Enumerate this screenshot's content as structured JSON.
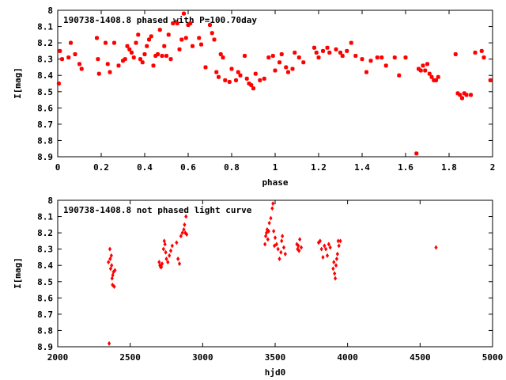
{
  "chart_data": [
    {
      "type": "scatter",
      "title": "190738-1408.8 phased with P=100.70day",
      "xlabel": "phase",
      "ylabel": "I[mag]",
      "xlim": [
        0,
        2
      ],
      "ylim": [
        8.9,
        8
      ],
      "y_inverted": true,
      "grid": false,
      "marker_color": "#ff0000",
      "marker": "star",
      "xticks": [
        "0",
        "0.2",
        "0.4",
        "0.6",
        "0.8",
        "1",
        "1.2",
        "1.4",
        "1.6",
        "1.8",
        "2"
      ],
      "yticks": [
        "8",
        "8.1",
        "8.2",
        "8.3",
        "8.4",
        "8.5",
        "8.6",
        "8.7",
        "8.8",
        "8.9"
      ],
      "x": [
        0.005,
        0.01,
        0.02,
        0.05,
        0.06,
        0.08,
        0.1,
        0.11,
        0.18,
        0.185,
        0.19,
        0.22,
        0.23,
        0.24,
        0.26,
        0.28,
        0.3,
        0.31,
        0.32,
        0.33,
        0.34,
        0.35,
        0.36,
        0.37,
        0.38,
        0.39,
        0.4,
        0.41,
        0.42,
        0.43,
        0.44,
        0.45,
        0.46,
        0.47,
        0.48,
        0.49,
        0.5,
        0.51,
        0.52,
        0.53,
        0.55,
        0.56,
        0.57,
        0.58,
        0.59,
        0.6,
        0.61,
        0.62,
        0.65,
        0.66,
        0.68,
        0.7,
        0.71,
        0.72,
        0.73,
        0.74,
        0.75,
        0.76,
        0.77,
        0.79,
        0.8,
        0.82,
        0.83,
        0.84,
        0.86,
        0.87,
        0.88,
        0.89,
        0.9,
        0.91,
        0.93,
        0.95,
        0.97,
        0.99,
        1.0,
        1.02,
        1.03,
        1.05,
        1.06,
        1.08,
        1.09,
        1.11,
        1.13,
        1.18,
        1.19,
        1.2,
        1.22,
        1.24,
        1.25,
        1.28,
        1.3,
        1.31,
        1.33,
        1.35,
        1.37,
        1.4,
        1.42,
        1.44,
        1.47,
        1.49,
        1.51,
        1.55,
        1.57,
        1.6,
        1.65,
        1.66,
        1.67,
        1.68,
        1.69,
        1.7,
        1.71,
        1.72,
        1.73,
        1.74,
        1.75,
        1.83,
        1.84,
        1.85,
        1.86,
        1.87,
        1.88,
        1.9,
        1.92,
        1.95,
        1.96,
        1.99
      ],
      "y": [
        8.45,
        8.25,
        8.3,
        8.29,
        8.2,
        8.27,
        8.33,
        8.36,
        8.17,
        8.3,
        8.39,
        8.2,
        8.33,
        8.38,
        8.2,
        8.34,
        8.31,
        8.3,
        8.22,
        8.24,
        8.26,
        8.29,
        8.2,
        8.15,
        8.3,
        8.32,
        8.27,
        8.22,
        8.18,
        8.16,
        8.34,
        8.28,
        8.27,
        8.12,
        8.28,
        8.22,
        8.28,
        8.15,
        8.3,
        8.08,
        8.08,
        8.24,
        8.18,
        8.02,
        8.17,
        8.09,
        8.08,
        8.22,
        8.17,
        8.21,
        8.35,
        8.09,
        8.14,
        8.18,
        8.38,
        8.41,
        8.27,
        8.29,
        8.43,
        8.44,
        8.36,
        8.43,
        8.38,
        8.4,
        8.28,
        8.42,
        8.45,
        8.46,
        8.48,
        8.39,
        8.43,
        8.42,
        8.29,
        8.28,
        8.37,
        8.32,
        8.27,
        8.35,
        8.38,
        8.36,
        8.26,
        8.29,
        8.32,
        8.23,
        8.26,
        8.29,
        8.25,
        8.23,
        8.26,
        8.24,
        8.26,
        8.28,
        8.25,
        8.2,
        8.28,
        8.3,
        8.38,
        8.31,
        8.29,
        8.29,
        8.34,
        8.29,
        8.4,
        8.29,
        8.88,
        8.36,
        8.37,
        8.34,
        8.37,
        8.33,
        8.39,
        8.41,
        8.43,
        8.43,
        8.41,
        8.27,
        8.51,
        8.52,
        8.54,
        8.51,
        8.52,
        8.52,
        8.26,
        8.25,
        8.29,
        8.43
      ],
      "point_size": 5,
      "clip_x": [
        0,
        2
      ]
    },
    {
      "type": "scatter",
      "title": "190738-1408.8 not phased light curve",
      "xlabel": "hjd0",
      "ylabel": "I[mag]",
      "xlim": [
        2000,
        5000
      ],
      "ylim": [
        8.9,
        8
      ],
      "y_inverted": true,
      "grid": false,
      "marker_color": "#ff0000",
      "marker": "diamond",
      "xticks": [
        "2000",
        "2500",
        "3000",
        "3500",
        "4000",
        "4500",
        "5000"
      ],
      "yticks": [
        "8",
        "8.1",
        "8.2",
        "8.3",
        "8.4",
        "8.5",
        "8.6",
        "8.7",
        "8.8",
        "8.9"
      ],
      "x": [
        2350,
        2355,
        2360,
        2362,
        2365,
        2370,
        2372,
        2375,
        2378,
        2380,
        2385,
        2390,
        2395,
        2700,
        2705,
        2710,
        2715,
        2720,
        2730,
        2735,
        2740,
        2745,
        2750,
        2760,
        2770,
        2780,
        2790,
        2820,
        2830,
        2840,
        2850,
        2860,
        2870,
        2875,
        2880,
        2885,
        2890,
        3430,
        3435,
        3440,
        3445,
        3450,
        3455,
        3460,
        3470,
        3480,
        3485,
        3490,
        3495,
        3500,
        3510,
        3520,
        3530,
        3540,
        3545,
        3550,
        3560,
        3570,
        3650,
        3655,
        3660,
        3665,
        3670,
        3680,
        3800,
        3810,
        3820,
        3830,
        3840,
        3850,
        3860,
        3870,
        3880,
        3900,
        3905,
        3910,
        3915,
        3920,
        3925,
        3930,
        3935,
        3940,
        3950,
        4610
      ],
      "y": [
        8.38,
        8.88,
        8.3,
        8.36,
        8.42,
        8.34,
        8.4,
        8.48,
        8.52,
        8.46,
        8.44,
        8.53,
        8.43,
        8.38,
        8.4,
        8.41,
        8.41,
        8.39,
        8.3,
        8.25,
        8.27,
        8.32,
        8.36,
        8.38,
        8.34,
        8.31,
        8.28,
        8.26,
        8.36,
        8.39,
        8.22,
        8.2,
        8.18,
        8.15,
        8.2,
        8.1,
        8.21,
        8.27,
        8.22,
        8.2,
        8.18,
        8.24,
        8.19,
        8.14,
        8.11,
        8.05,
        8.02,
        8.19,
        8.28,
        8.23,
        8.27,
        8.3,
        8.36,
        8.32,
        8.25,
        8.22,
        8.29,
        8.33,
        8.27,
        8.3,
        8.28,
        8.31,
        8.24,
        8.29,
        8.26,
        8.25,
        8.3,
        8.35,
        8.28,
        8.3,
        8.34,
        8.27,
        8.29,
        8.42,
        8.38,
        8.45,
        8.48,
        8.4,
        8.36,
        8.33,
        8.25,
        8.28,
        8.25,
        8.29
      ],
      "point_size": 3,
      "clip_x": [
        2000,
        5000
      ]
    }
  ]
}
